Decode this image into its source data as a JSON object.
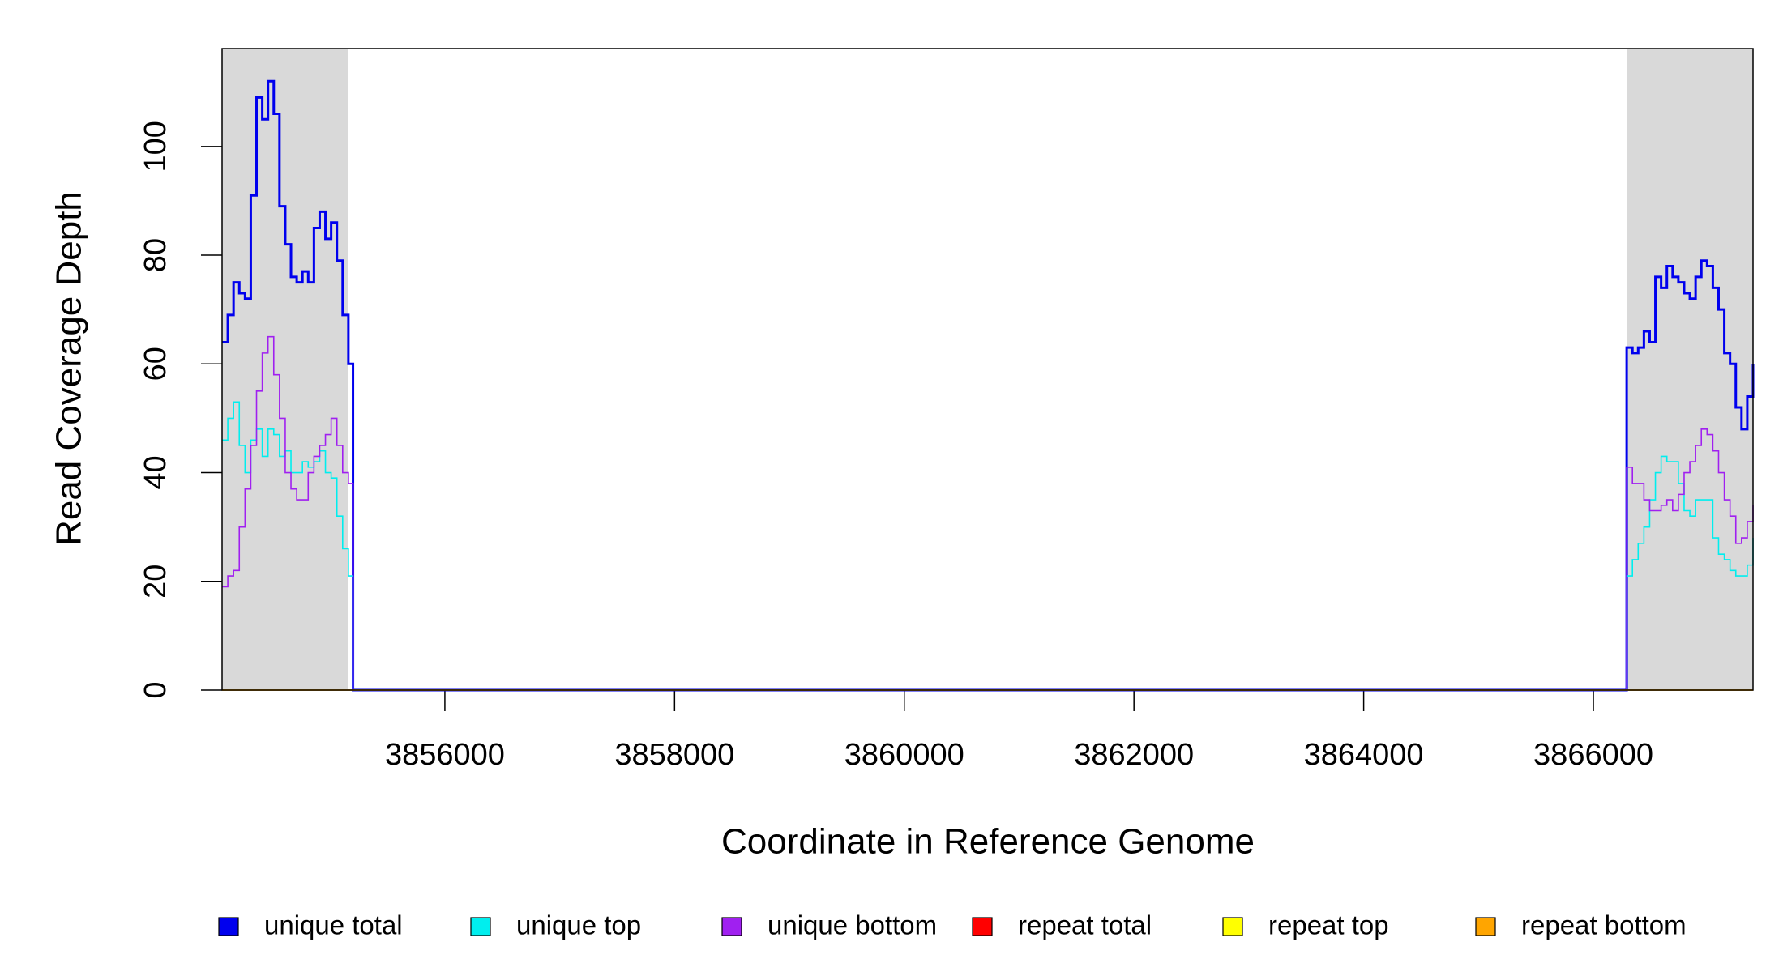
{
  "chart_data": {
    "type": "step",
    "x_label": "Coordinate in Reference Genome",
    "y_label": "Read Coverage Depth",
    "xlim": [
      3854060,
      3867390
    ],
    "ylim": [
      0,
      118
    ],
    "xticks": [
      3856000,
      3858000,
      3860000,
      3862000,
      3864000,
      3866000
    ],
    "yticks": [
      0,
      20,
      40,
      60,
      80,
      100
    ],
    "shaded_regions": [
      [
        3854060,
        3855160
      ],
      [
        3866290,
        3867390
      ]
    ],
    "shade_color": "#d9d9d9",
    "x": [
      3854060,
      3854110,
      3854160,
      3854210,
      3854260,
      3854310,
      3854360,
      3854410,
      3854460,
      3854510,
      3854560,
      3854610,
      3854660,
      3854710,
      3854760,
      3854810,
      3854860,
      3854910,
      3854960,
      3855010,
      3855060,
      3855110,
      3855160,
      3855200,
      3866290,
      3866340,
      3866390,
      3866440,
      3866490,
      3866540,
      3866590,
      3866640,
      3866690,
      3866740,
      3866790,
      3866840,
      3866890,
      3866940,
      3866990,
      3867040,
      3867090,
      3867140,
      3867190,
      3867240,
      3867290,
      3867340,
      3867390
    ],
    "series": [
      {
        "name": "unique total",
        "color": "#0000ee",
        "width": 3,
        "values": [
          64,
          69,
          75,
          73,
          72,
          91,
          109,
          105,
          112,
          106,
          89,
          82,
          76,
          75,
          77,
          75,
          85,
          88,
          83,
          86,
          79,
          69,
          60,
          0,
          63,
          62,
          63,
          66,
          64,
          76,
          74,
          78,
          76,
          75,
          73,
          72,
          76,
          79,
          78,
          74,
          70,
          62,
          60,
          52,
          48,
          54,
          60
        ]
      },
      {
        "name": "unique top",
        "color": "#00eeee",
        "width": 1.6,
        "values": [
          46,
          50,
          53,
          45,
          40,
          46,
          48,
          43,
          48,
          47,
          43,
          44,
          40,
          40,
          42,
          41,
          42,
          44,
          40,
          39,
          32,
          26,
          21,
          0,
          21,
          24,
          27,
          30,
          35,
          40,
          43,
          42,
          42,
          38,
          33,
          32,
          35,
          35,
          35,
          28,
          25,
          24,
          22,
          21,
          21,
          23,
          28
        ]
      },
      {
        "name": "unique bottom",
        "color": "#a020f0",
        "width": 1.6,
        "values": [
          19,
          21,
          22,
          30,
          37,
          45,
          55,
          62,
          65,
          58,
          50,
          40,
          37,
          35,
          35,
          40,
          43,
          45,
          47,
          50,
          45,
          40,
          38,
          0,
          41,
          38,
          38,
          35,
          33,
          33,
          34,
          35,
          33,
          36,
          40,
          42,
          45,
          48,
          47,
          44,
          40,
          35,
          32,
          27,
          28,
          31,
          34
        ]
      },
      {
        "name": "repeat total",
        "color": "#ff0000",
        "width": 1.6,
        "values": [
          0,
          0,
          0,
          0,
          0,
          0,
          0,
          0,
          0,
          0,
          0,
          0,
          0,
          0,
          0,
          0,
          0,
          0,
          0,
          0,
          0,
          0,
          0,
          0,
          0,
          0,
          0,
          0,
          0,
          0,
          0,
          0,
          0,
          0,
          0,
          0,
          0,
          0,
          0,
          0,
          0,
          0,
          0,
          0,
          0,
          0,
          0
        ]
      },
      {
        "name": "repeat top",
        "color": "#ffff00",
        "width": 1.6,
        "values": [
          0,
          0,
          0,
          0,
          0,
          0,
          0,
          0,
          0,
          0,
          0,
          0,
          0,
          0,
          0,
          0,
          0,
          0,
          0,
          0,
          0,
          0,
          0,
          0,
          0,
          0,
          0,
          0,
          0,
          0,
          0,
          0,
          0,
          0,
          0,
          0,
          0,
          0,
          0,
          0,
          0,
          0,
          0,
          0,
          0,
          0,
          0
        ]
      },
      {
        "name": "repeat bottom",
        "color": "#ffa500",
        "width": 1.6,
        "values": [
          0,
          0,
          0,
          0,
          0,
          0,
          0,
          0,
          0,
          0,
          0,
          0,
          0,
          0,
          0,
          0,
          0,
          0,
          0,
          0,
          0,
          0,
          0,
          0,
          0,
          0,
          0,
          0,
          0,
          0,
          0,
          0,
          0,
          0,
          0,
          0,
          0,
          0,
          0,
          0,
          0,
          0,
          0,
          0,
          0,
          0,
          0
        ]
      }
    ]
  }
}
